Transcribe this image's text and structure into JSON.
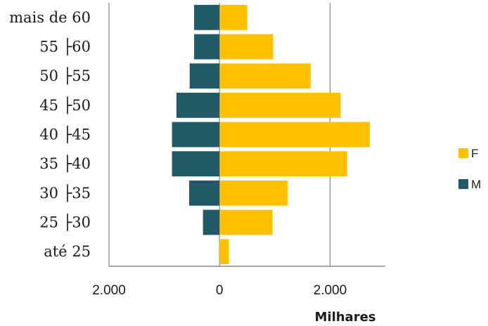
{
  "chart_data": {
    "type": "bar",
    "orientation": "horizontal",
    "stacked": false,
    "categories": [
      "mais de 60",
      "55 ├60",
      "50 ├55",
      "45 ├50",
      "40 ├45",
      "35 ├40",
      "30 ├35",
      "25 ├30",
      "até 25"
    ],
    "series": [
      {
        "name": "F",
        "color": "#FFC000",
        "values": [
          500,
          970,
          1650,
          2190,
          2720,
          2310,
          1230,
          960,
          170
        ]
      },
      {
        "name": "M",
        "color": "#215967",
        "values": [
          -460,
          -460,
          -540,
          -780,
          -860,
          -860,
          -550,
          -300,
          0
        ]
      }
    ],
    "xlim": [
      -2000,
      3000
    ],
    "xticks": [
      -2000,
      0,
      2000
    ],
    "xtick_labels": [
      "2.000",
      "0",
      "2.000"
    ],
    "xlabel": "Milhares",
    "grid": true,
    "legend_position": "right"
  }
}
